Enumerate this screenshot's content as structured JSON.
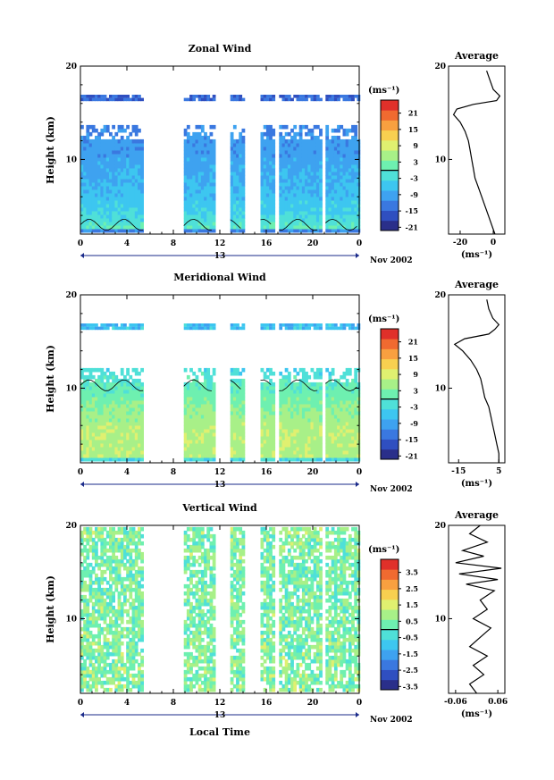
{
  "figure": {
    "xlabel": "Local Time",
    "date_label": "Nov 2002",
    "day_label": "13"
  },
  "colorscale": [
    "#2a2f8a",
    "#2f4fc0",
    "#3a78e0",
    "#3ea2f0",
    "#3dc6f0",
    "#4fe0d8",
    "#6ef0b0",
    "#a8f088",
    "#e0f070",
    "#f8d050",
    "#f8a040",
    "#f06a30",
    "#e0302a"
  ],
  "chart_data": [
    {
      "type": "heatmap",
      "id": "zonal",
      "title": "Zonal Wind",
      "xlabel": "Local Time",
      "ylabel": "Height (km)",
      "xlim": [
        0,
        24
      ],
      "ylim": [
        2,
        20
      ],
      "xticks": [
        "0",
        "4",
        "8",
        "12",
        "16",
        "20",
        "0"
      ],
      "yticks": [
        "10",
        "20"
      ],
      "colorbar": {
        "unit": "(ms⁻¹)",
        "ticks": [
          "21",
          "15",
          "9",
          "3",
          "-3",
          "-9",
          "-15",
          "-21"
        ],
        "range": [
          -24,
          24
        ]
      },
      "data_segments": [
        [
          0,
          5.4
        ],
        [
          8.9,
          11.6
        ],
        [
          12.9,
          14.1
        ],
        [
          15.5,
          16.6
        ],
        [
          17.1,
          20.6
        ],
        [
          21.1,
          24
        ]
      ],
      "colorband_profile": [
        {
          "z": 2.3,
          "v": -1
        },
        {
          "z": 4,
          "v": -6
        },
        {
          "z": 7,
          "v": -9
        },
        {
          "z": 10,
          "v": -11
        },
        {
          "z": 12,
          "v": -12
        },
        {
          "z": 13.5,
          "v": -14
        }
      ],
      "upper_band": {
        "z": [
          16.3,
          16.9
        ],
        "v": -16
      },
      "average_profile": {
        "title": "Average",
        "xlabel": "(ms⁻¹)",
        "xticks": [
          "-20",
          "0"
        ],
        "xlim": [
          -27,
          7
        ],
        "ylim": [
          2,
          20
        ],
        "yticks": [
          "10",
          "20"
        ],
        "points": [
          [
            1,
            2
          ],
          [
            -1,
            3
          ],
          [
            -3,
            4
          ],
          [
            -5,
            5
          ],
          [
            -7,
            6
          ],
          [
            -9,
            7
          ],
          [
            -11,
            8
          ],
          [
            -12,
            9
          ],
          [
            -13,
            10
          ],
          [
            -14,
            11
          ],
          [
            -15,
            12
          ],
          [
            -17,
            13
          ],
          [
            -20,
            14
          ],
          [
            -24,
            14.8
          ],
          [
            -22,
            15.4
          ],
          [
            -12,
            15.9
          ],
          [
            2,
            16.3
          ],
          [
            4,
            16.8
          ],
          [
            0,
            17.5
          ],
          [
            -2,
            18.5
          ],
          [
            -4,
            19.5
          ]
        ]
      }
    },
    {
      "type": "heatmap",
      "id": "meridional",
      "title": "Meridional Wind",
      "xlabel": "Local Time",
      "ylabel": "Height (km)",
      "xlim": [
        0,
        24
      ],
      "ylim": [
        2,
        20
      ],
      "xticks": [
        "0",
        "4",
        "8",
        "12",
        "16",
        "20",
        "0"
      ],
      "yticks": [
        "10",
        "20"
      ],
      "colorbar": {
        "unit": "(ms⁻¹)",
        "ticks": [
          "21",
          "15",
          "9",
          "3",
          "-3",
          "-9",
          "-15",
          "-21"
        ],
        "range": [
          -24,
          24
        ]
      },
      "data_segments": [
        [
          0,
          5.4
        ],
        [
          8.9,
          11.6
        ],
        [
          12.9,
          14.1
        ],
        [
          15.5,
          16.6
        ],
        [
          17.1,
          20.6
        ],
        [
          21.1,
          24
        ]
      ],
      "colorband_profile": [
        {
          "z": 2.3,
          "v": 4
        },
        {
          "z": 5,
          "v": 5
        },
        {
          "z": 7,
          "v": 3
        },
        {
          "z": 9,
          "v": 0
        },
        {
          "z": 10.5,
          "v": -2
        },
        {
          "z": 12,
          "v": -5
        }
      ],
      "upper_band": {
        "z": [
          16.3,
          16.9
        ],
        "v": -8
      },
      "average_profile": {
        "title": "Average",
        "xlabel": "(ms⁻¹)",
        "xticks": [
          "-15",
          "5"
        ],
        "xlim": [
          -20,
          8
        ],
        "ylim": [
          2,
          20
        ],
        "yticks": [
          "10",
          "20"
        ],
        "points": [
          [
            5,
            2
          ],
          [
            5,
            3
          ],
          [
            4,
            4
          ],
          [
            3,
            5
          ],
          [
            2,
            6
          ],
          [
            1,
            7
          ],
          [
            0,
            8
          ],
          [
            -2,
            9
          ],
          [
            -3,
            10
          ],
          [
            -4,
            11
          ],
          [
            -6,
            12
          ],
          [
            -9,
            13
          ],
          [
            -13,
            14
          ],
          [
            -17,
            14.7
          ],
          [
            -12,
            15.3
          ],
          [
            0,
            15.8
          ],
          [
            3,
            16.3
          ],
          [
            5,
            16.8
          ],
          [
            2,
            17.5
          ],
          [
            0,
            18.5
          ],
          [
            -1,
            19.5
          ]
        ]
      }
    },
    {
      "type": "heatmap",
      "id": "vertical",
      "title": "Vertical Wind",
      "xlabel": "Local Time",
      "ylabel": "Height (km)",
      "xlim": [
        0,
        24
      ],
      "ylim": [
        2,
        20
      ],
      "xticks": [
        "0",
        "4",
        "8",
        "12",
        "16",
        "20",
        "0"
      ],
      "yticks": [
        "10",
        "20"
      ],
      "colorbar": {
        "unit": "(ms⁻¹)",
        "ticks": [
          "3.5",
          "2.5",
          "1.5",
          "0.5",
          "-0.5",
          "-1.5",
          "-2.5",
          "-3.5"
        ],
        "range": [
          -4,
          4
        ]
      },
      "data_segments": [
        [
          0,
          5.4
        ],
        [
          8.9,
          11.6
        ],
        [
          12.9,
          14.1
        ],
        [
          15.5,
          16.6
        ],
        [
          17.1,
          20.6
        ],
        [
          21.1,
          24
        ]
      ],
      "colorband_profile": [
        {
          "z": 2.3,
          "v": 0.3
        },
        {
          "z": 8,
          "v": 0.2
        },
        {
          "z": 14,
          "v": 0.1
        },
        {
          "z": 20,
          "v": 0.2
        }
      ],
      "upper_band": null,
      "average_profile": {
        "title": "Average",
        "xlabel": "(ms⁻¹)",
        "xticks": [
          "-0.06",
          "0.06"
        ],
        "xlim": [
          -0.08,
          0.08
        ],
        "ylim": [
          2,
          20
        ],
        "yticks": [
          "10",
          "20"
        ],
        "points": [
          [
            0.0,
            2
          ],
          [
            -0.02,
            3
          ],
          [
            0.02,
            4
          ],
          [
            -0.01,
            5
          ],
          [
            0.03,
            6
          ],
          [
            -0.02,
            7
          ],
          [
            0.01,
            8
          ],
          [
            0.04,
            9
          ],
          [
            -0.01,
            10
          ],
          [
            0.03,
            11
          ],
          [
            0.01,
            12
          ],
          [
            0.05,
            13
          ],
          [
            -0.03,
            13.7
          ],
          [
            0.06,
            14.2
          ],
          [
            -0.05,
            14.8
          ],
          [
            0.07,
            15.4
          ],
          [
            -0.06,
            16
          ],
          [
            0.02,
            16.7
          ],
          [
            -0.04,
            17.3
          ],
          [
            0.03,
            18.2
          ],
          [
            -0.02,
            19.1
          ],
          [
            0.01,
            20
          ]
        ]
      }
    }
  ]
}
